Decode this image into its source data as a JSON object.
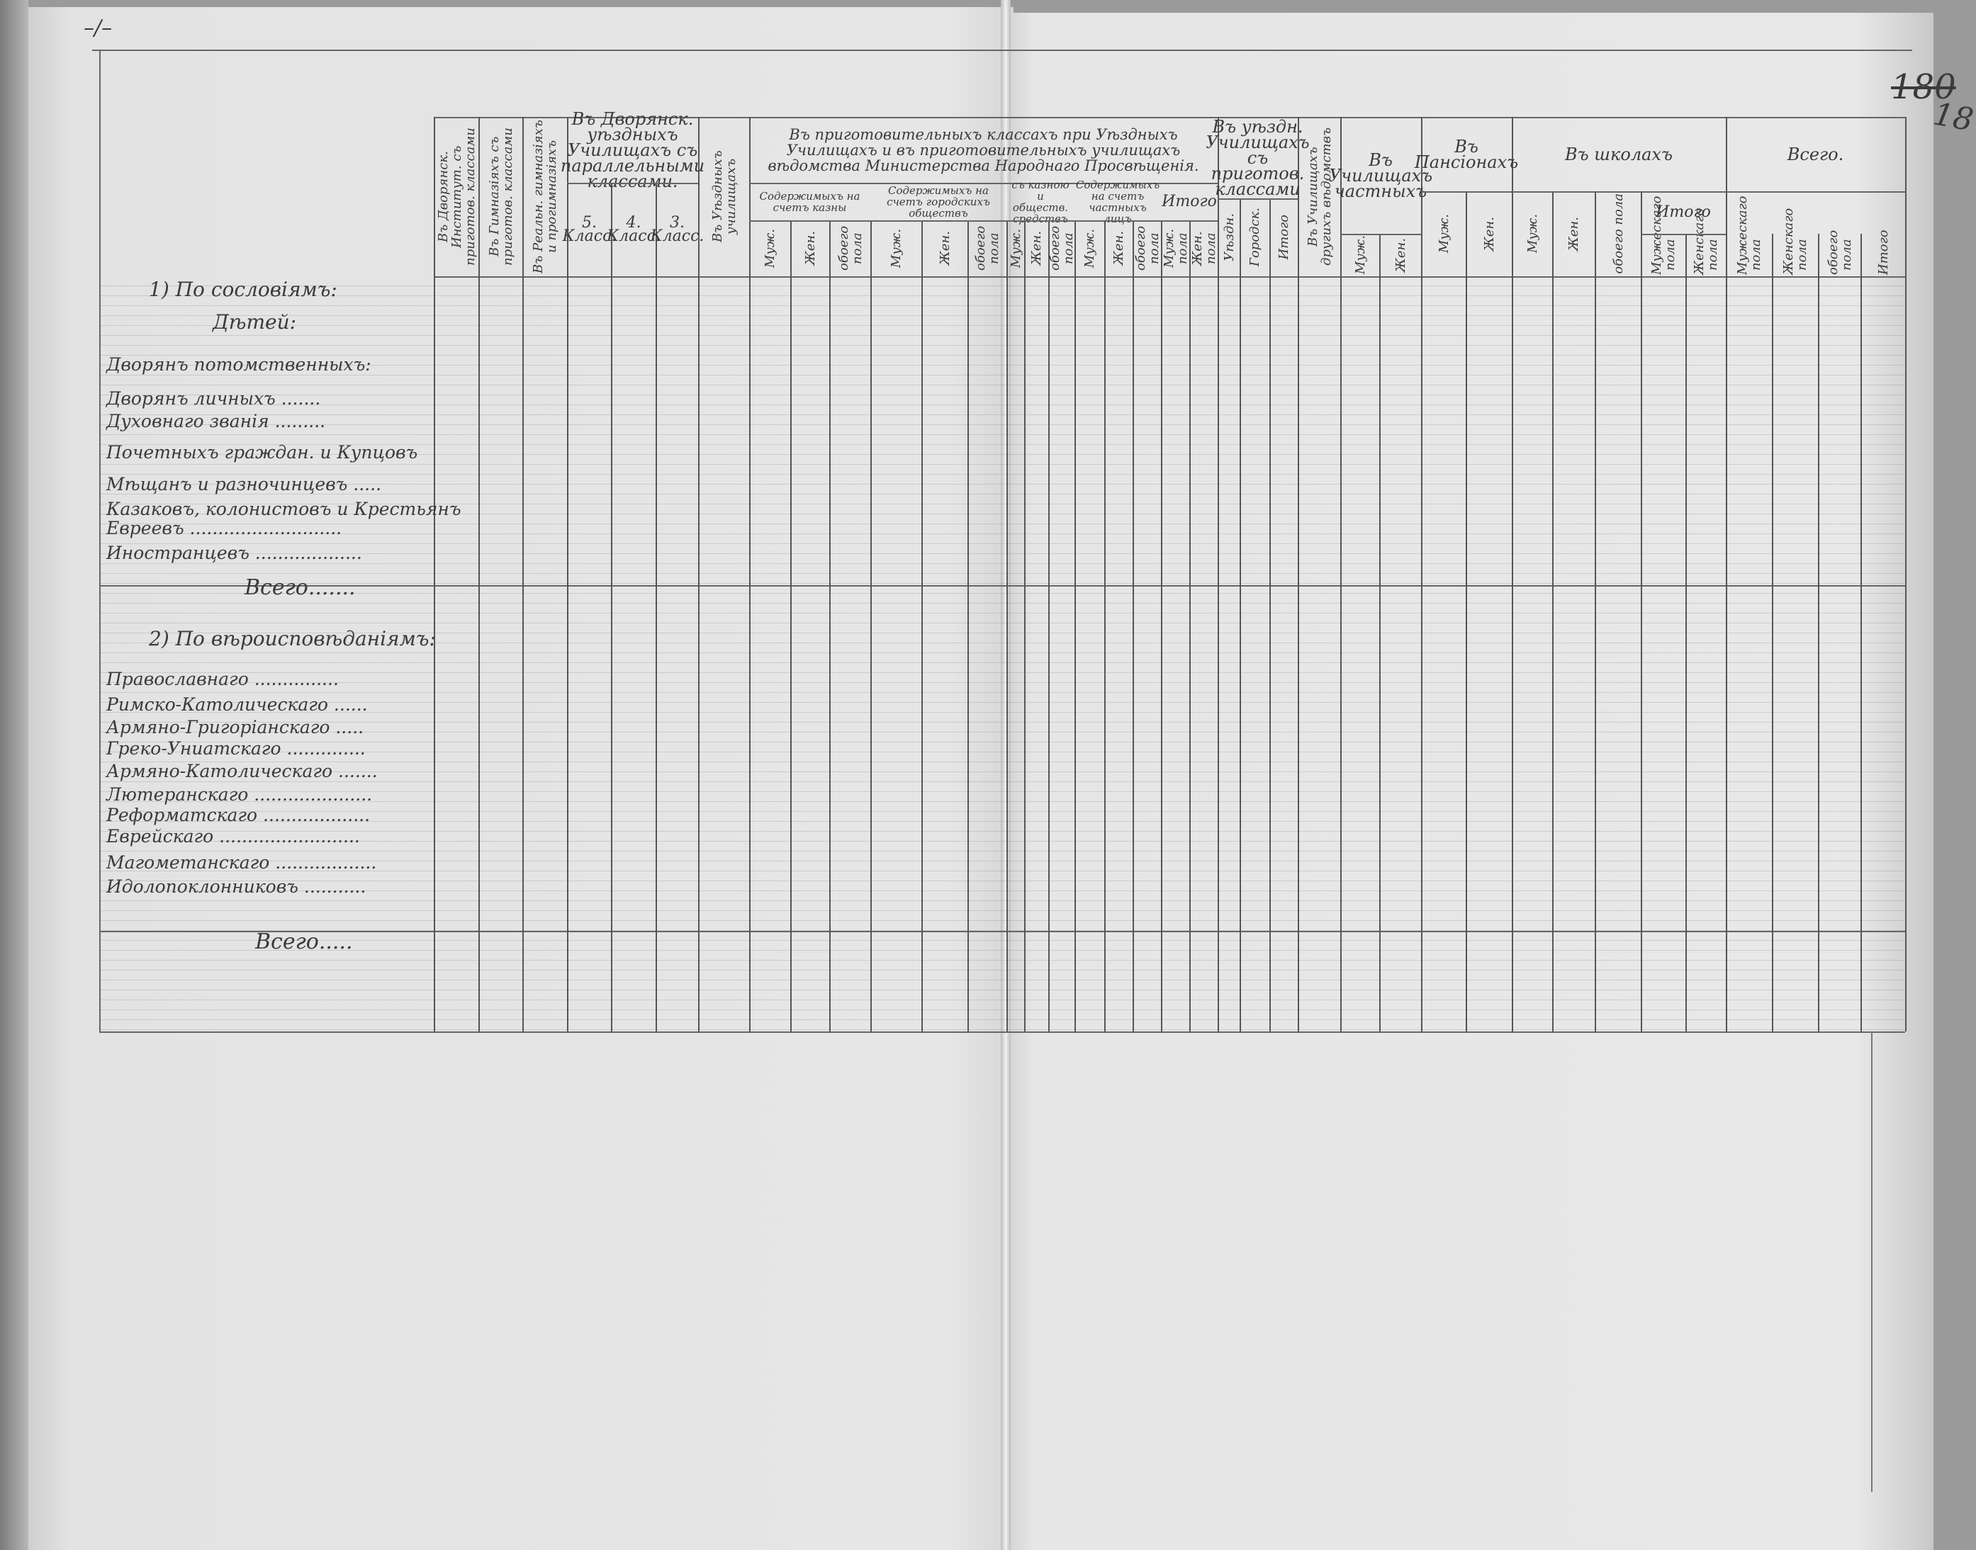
{
  "page_marks": {
    "corner_mark": "–/–",
    "folio_struck": "180",
    "folio": "18"
  },
  "header": {
    "columns": [
      "Въ Дворянск. Институт. съ приготов. классами",
      "Въ Гимназіяхъ съ приготов. классами",
      "Въ Реальн. гимназіяхъ и прогимназіяхъ",
      "5. Класс.",
      "4. Класс.",
      "3. Класс.",
      "Въ Уѣздныхъ училищахъ",
      "Муж.",
      "Жен.",
      "обоего пола",
      "Муж.",
      "Жен.",
      "обоего пола",
      "Муж.",
      "Жен.",
      "обоего пола",
      "Муж.",
      "Жен.",
      "обоего пола",
      "Муж. пола",
      "Жен. пола",
      "Уѣздн.",
      "Городск.",
      "Итого",
      "Въ Училищахъ другихъ вѣдомствъ",
      "Муж.",
      "Жен.",
      "Муж.",
      "Жен.",
      "Муж.",
      "Жен.",
      "обоего пола",
      "Мужескаго пола",
      "Женскаго пола",
      "Мужескаго пола",
      "Женскаго пола",
      "обоего пола",
      "Итого"
    ],
    "groups": [
      "Въ Дворянск. уѣздныхъ Училищахъ съ параллельными классами.",
      "Въ приготовительныхъ классахъ при Уѣздныхъ Училищахъ и въ приготовительныхъ училищахъ вѣдомства Министерства Народнаго Просвѣщенія.",
      "Въ уѣздн. Училищахъ съ приготов. классами",
      "Въ Училищахъ частныхъ",
      "Въ Пансіонахъ",
      "Въ школахъ",
      "Всего."
    ],
    "subgroups": [
      "Содержимыхъ на счетъ казны",
      "Содержимыхъ на счетъ городскихъ обществъ",
      "съ казною и обществ. средствъ",
      "Содержимыхъ на счетъ частныхъ лицъ",
      "Итого",
      "Итого"
    ]
  },
  "rows": {
    "section1_title": "1) По сословіямъ:",
    "section1_subtitle": "Дѣтей:",
    "section1": [
      "Дворянъ потомственныхъ:",
      "Дворянъ личныхъ .......",
      "Духовнаго званія .........",
      "Почетныхъ граждан. и Купцовъ",
      "Мѣщанъ и разночинцевъ .....",
      "Казаковъ, колонистовъ и Крестьянъ",
      "Евреевъ ...........................",
      "Иностранцевъ ..................."
    ],
    "section1_total": "Всего.......",
    "section2_title": "2) По вѣроисповѣданіямъ:",
    "section2": [
      "Православнаго ...............",
      "Римско-Католическаго ......",
      "Армяно-Григоріанскаго .....",
      "Греко-Униатскаго ..............",
      "Армяно-Католическаго .......",
      "Лютеранскаго .....................",
      "Реформатскаго ...................",
      "Еврейскаго .........................",
      "Магометанскаго ..................",
      "Идолопоклонниковъ ..........."
    ],
    "section2_total": "Всего....."
  }
}
